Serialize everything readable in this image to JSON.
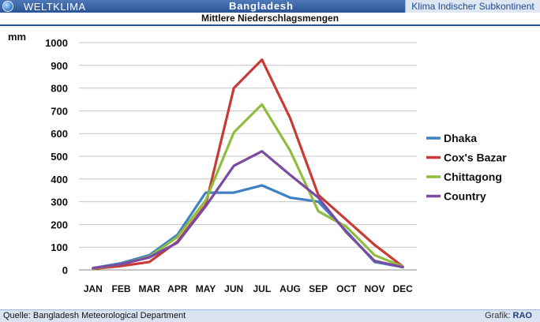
{
  "header": {
    "brand": "WELTKLIMA",
    "country": "Bangladesh",
    "region": "Klima Indischer Subkontinent",
    "chart_title": "Mittlere Niederschlagsmengen"
  },
  "footer": {
    "source": "Quelle: Bangladesh Meteorological Department",
    "graphic_label": "Grafik:",
    "graphic_author": "RAO"
  },
  "chart_data": {
    "type": "line",
    "title": "Mittlere Niederschlagsmengen",
    "ylabel": "mm",
    "xlabel": "",
    "ylim": [
      0,
      1000
    ],
    "yticks": [
      0,
      100,
      200,
      300,
      400,
      500,
      600,
      700,
      800,
      900,
      1000
    ],
    "grid": true,
    "legend_position": "right",
    "categories": [
      "JAN",
      "FEB",
      "MAR",
      "APR",
      "MAY",
      "JUN",
      "JUL",
      "AUG",
      "SEP",
      "OCT",
      "NOV",
      "DEC"
    ],
    "series": [
      {
        "name": "Dhaka",
        "color": "#3f82c4",
        "values": [
          8,
          30,
          65,
          155,
          340,
          340,
          372,
          318,
          300,
          170,
          35,
          12
        ]
      },
      {
        "name": "Cox's Bazar",
        "color": "#c83a35",
        "values": [
          5,
          17,
          35,
          125,
          285,
          800,
          925,
          668,
          330,
          220,
          110,
          15
        ]
      },
      {
        "name": "Chittagong",
        "color": "#8fbc3e",
        "values": [
          6,
          25,
          58,
          145,
          305,
          605,
          728,
          525,
          258,
          190,
          65,
          15
        ]
      },
      {
        "name": "Country",
        "color": "#7a4ba0",
        "values": [
          8,
          25,
          55,
          120,
          280,
          458,
          522,
          418,
          318,
          165,
          40,
          12
        ]
      }
    ]
  }
}
